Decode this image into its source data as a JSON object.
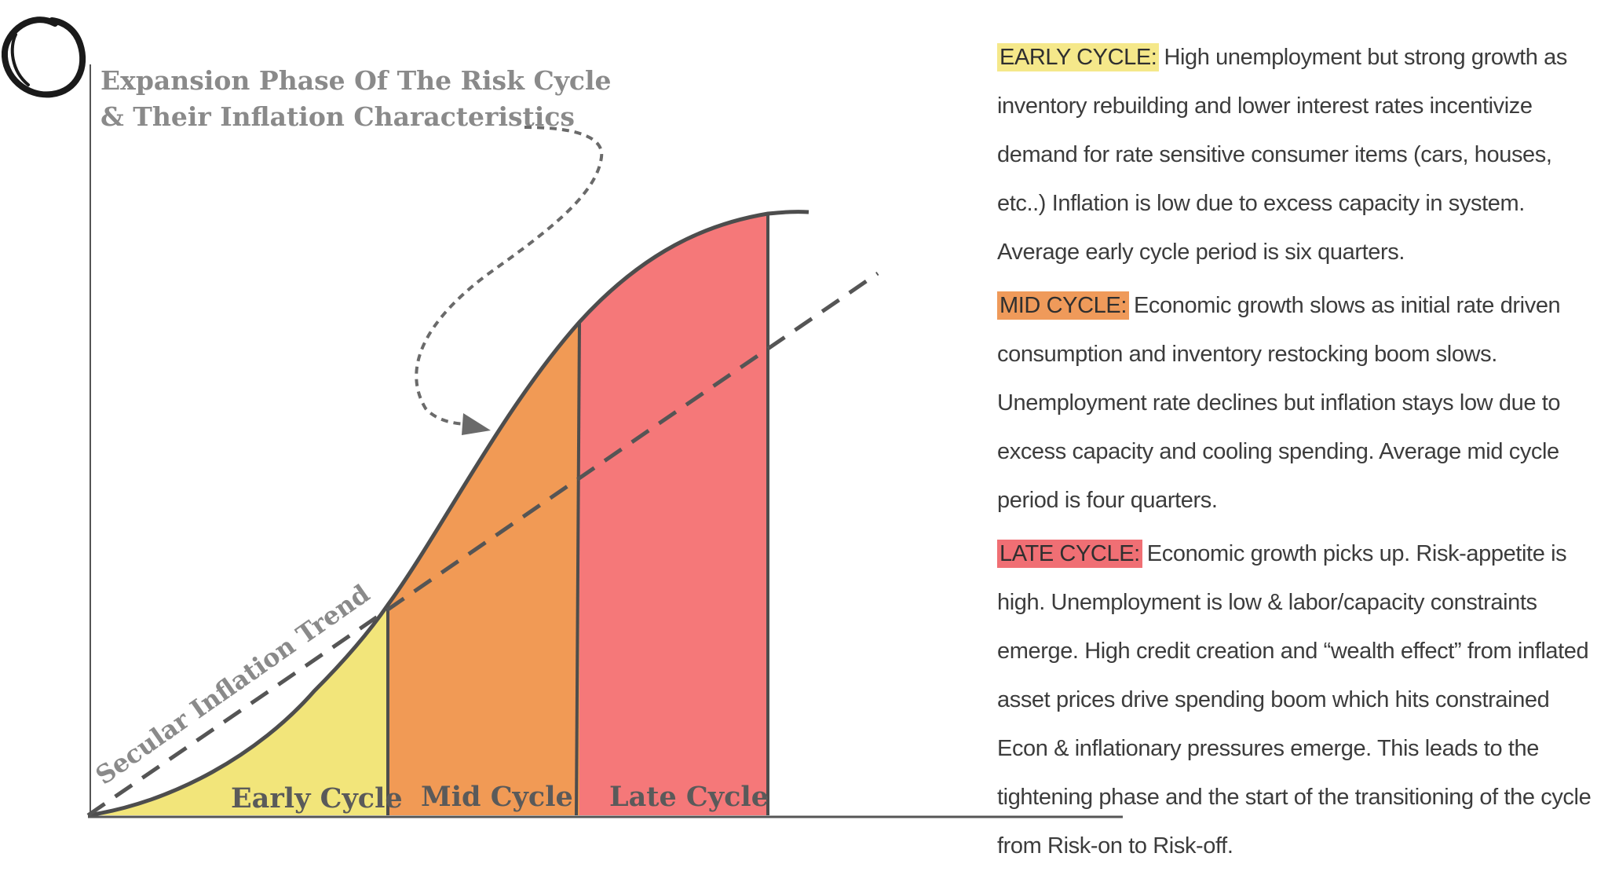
{
  "title": {
    "line1": "Expansion Phase Of The Risk Cycle",
    "line2": "& Their Inflation Characteristics"
  },
  "phases": [
    {
      "label": "Early Cycle",
      "color": "#f2e57a"
    },
    {
      "label": "Mid Cycle",
      "color": "#f19a55"
    },
    {
      "label": "Late Cycle",
      "color": "#f57879"
    }
  ],
  "trend_label": "Secular Inflation Trend",
  "colors": {
    "axis": "#555555",
    "curve": "#4d4d4d",
    "dashed_trend": "#555555",
    "arrow": "#6a6a6a",
    "title_text": "#8a8a8a"
  },
  "descriptions": {
    "early": {
      "heading": "EARLY CYCLE:",
      "body": "High unemployment but strong growth as inventory rebuilding and lower interest rates incentivize demand for rate sensitive consumer items (cars, houses, etc..) Inflation is low due to excess capacity in system. Average early cycle period is six quarters."
    },
    "mid": {
      "heading": "MID CYCLE:",
      "body": "Economic growth slows as initial rate driven consumption and inventory restocking boom slows. Unemployment rate declines but inflation stays low due to excess capacity and cooling spending. Average mid cycle period is four quarters."
    },
    "late": {
      "heading": "LATE CYCLE:",
      "body": "Economic growth picks up. Risk-appetite is high. Unemployment is low & labor/capacity constraints emerge. High credit creation and “wealth effect” from inflated asset prices drive spending boom which hits constrained Econ & inflationary pressures emerge. This leads to the tightening phase and the start of the transitioning of the cycle from Risk-on to Risk-off."
    }
  }
}
